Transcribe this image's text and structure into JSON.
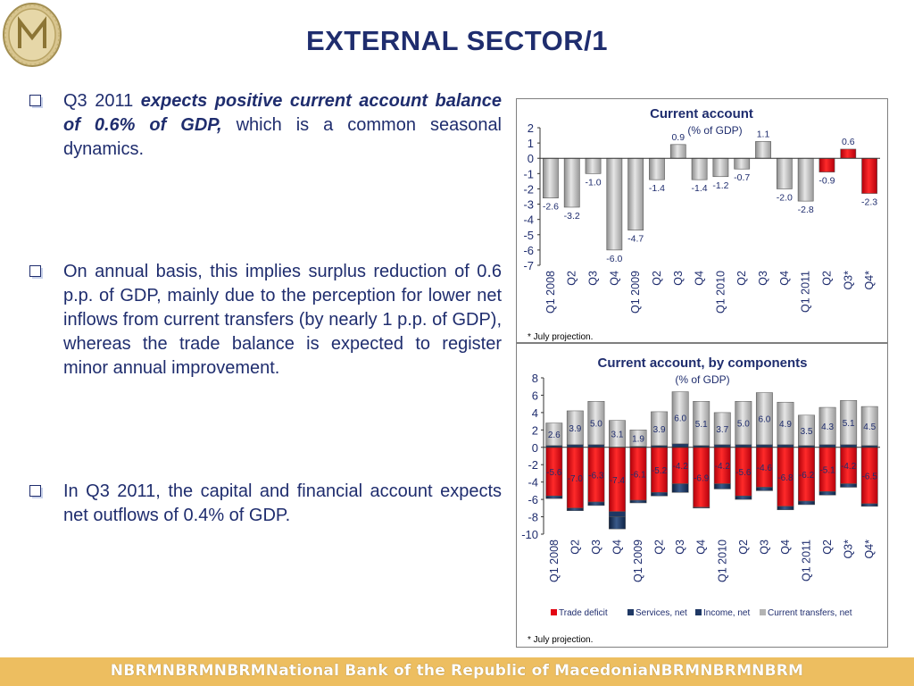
{
  "title": "EXTERNAL SECTOR/1",
  "bullets": [
    {
      "pre": "Q3 2011 ",
      "em": "expects positive current account balance of 0.6% of GDP,",
      "post": " which is a common seasonal dynamics."
    },
    {
      "text": "On annual basis, this implies surplus reduction of 0.6 p.p. of GDP, mainly due to the perception for lower net inflows from current transfers (by nearly 1 p.p. of GDP), whereas the trade balance is expected to register minor annual improvement."
    },
    {
      "text": "In Q3 2011, the capital and financial account expects net outflows of 0.4% of GDP."
    }
  ],
  "footer": "NBRMNBRMNBRMNational Bank of the Republic of MacedoniaNBRMNBRMNBRM",
  "colors": {
    "title": "#1f2d6e",
    "gray_bar": "#b3b3b3",
    "red_bar": "#e30613",
    "navy": "#1f3864",
    "footer": "#edbe60"
  },
  "chart_data": [
    {
      "type": "bar",
      "title": "Current account",
      "subtitle": "(% of GDP)",
      "categories": [
        "Q1 2008",
        "Q2",
        "Q3",
        "Q4",
        "Q1 2009",
        "Q2",
        "Q3",
        "Q4",
        "Q1 2010",
        "Q2",
        "Q3",
        "Q4",
        "Q1 2011",
        "Q2",
        "Q3*",
        "Q4*"
      ],
      "values": [
        -2.6,
        -3.2,
        -1.0,
        -6.0,
        -4.7,
        -1.4,
        0.9,
        -1.4,
        -1.2,
        -0.7,
        1.1,
        -2.0,
        -2.8,
        -0.9,
        0.6,
        -2.3
      ],
      "labels": [
        "-2.6",
        "-3.2",
        "-1.0",
        "-6.0",
        "-4.7",
        "-1.4",
        "0.9",
        "-1.4",
        "-1.2",
        "-0.7",
        "1.1",
        "-2.0",
        "-2.8",
        "-0.9",
        "0.6",
        "-2.3"
      ],
      "highlight_from_index": 13,
      "ylim": [
        -7,
        2
      ],
      "yticks": [
        "2",
        "1",
        "0",
        "-1",
        "-2",
        "-3",
        "-4",
        "-5",
        "-6",
        "-7"
      ],
      "note": "* July projection."
    },
    {
      "type": "bar",
      "stacked": true,
      "title": "Current account, by components",
      "subtitle": "(% of GDP)",
      "categories": [
        "Q1 2008",
        "Q2",
        "Q3",
        "Q4",
        "Q1 2009",
        "Q2",
        "Q3",
        "Q4",
        "Q1 2010",
        "Q2",
        "Q3",
        "Q4",
        "Q1 2011",
        "Q2",
        "Q3*",
        "Q4*"
      ],
      "series": [
        {
          "name": "Trade deficit",
          "values": [
            -5.6,
            -7.0,
            -6.3,
            -7.4,
            -6.1,
            -5.2,
            -4.2,
            -6.9,
            -4.2,
            -5.6,
            -4.6,
            -6.8,
            -6.2,
            -5.1,
            -4.2,
            -6.5
          ],
          "labels": [
            "-5.6",
            "-7.0",
            "-6.3",
            "-7.4",
            "-6.1",
            "-5.2",
            "-4.2",
            "-6.9",
            "-4.2",
            "-5.6",
            "-4.6",
            "-6.8",
            "-6.2",
            "-5.1",
            "-4.2",
            "-6.5"
          ]
        },
        {
          "name": "Services, net",
          "values": [
            0.2,
            0.3,
            0.3,
            -0.6,
            0.1,
            0.2,
            0.4,
            0.2,
            0.3,
            0.3,
            0.3,
            0.3,
            0.2,
            0.3,
            0.3,
            0.2
          ]
        },
        {
          "name": "Income, net",
          "values": [
            -0.3,
            -0.3,
            -0.4,
            -1.4,
            -0.3,
            -0.4,
            -1.0,
            -0.1,
            -0.6,
            -0.4,
            -0.4,
            -0.4,
            -0.4,
            -0.4,
            -0.4,
            -0.3
          ]
        },
        {
          "name": "Current transfers, net",
          "values": [
            2.6,
            3.9,
            5.0,
            3.1,
            1.9,
            3.9,
            6.0,
            5.1,
            3.7,
            5.0,
            6.0,
            4.9,
            3.5,
            4.3,
            5.1,
            4.5
          ],
          "labels": [
            "2.6",
            "3.9",
            "5.0",
            "3.1",
            "1.9",
            "3.9",
            "6.0",
            "5.1",
            "3.7",
            "5.0",
            "6.0",
            "4.9",
            "3.5",
            "4.3",
            "5.1",
            "4.5"
          ]
        }
      ],
      "ylim": [
        -10,
        8
      ],
      "yticks": [
        "8",
        "6",
        "4",
        "2",
        "0",
        "-2",
        "-4",
        "-6",
        "-8",
        "-10"
      ],
      "legend_position": "bottom",
      "note": "* July projection."
    }
  ]
}
